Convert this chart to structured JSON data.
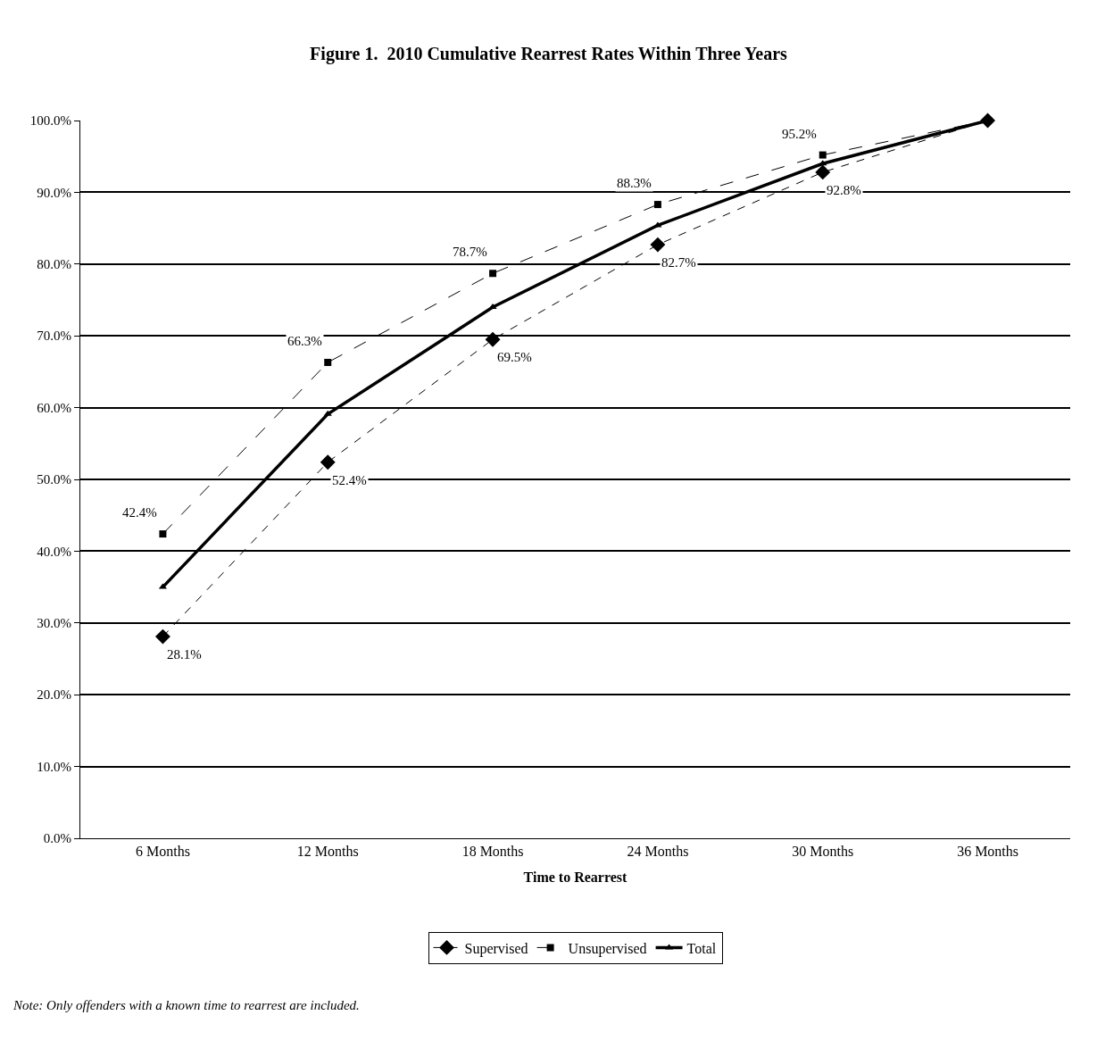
{
  "chart_data": {
    "type": "line",
    "title": "Figure 1.  2010 Cumulative Rearrest Rates Within Three Years",
    "xlabel": "Time to Rearrest",
    "categories": [
      "6 Months",
      "12 Months",
      "18 Months",
      "24 Months",
      "30 Months",
      "36 Months"
    ],
    "series": [
      {
        "name": "Supervised",
        "color": "#000000",
        "marker": "diamond",
        "line_style": "dotted",
        "values": [
          28.1,
          52.4,
          69.5,
          82.7,
          92.8,
          100.0
        ],
        "value_labels": [
          "28.1%",
          "52.4%",
          "69.5%",
          "82.7%",
          "92.8%",
          null
        ]
      },
      {
        "name": "Unsupervised",
        "color": "#000000",
        "marker": "square",
        "line_style": "dashed",
        "values": [
          42.4,
          66.3,
          78.7,
          88.3,
          95.2,
          100.0
        ],
        "value_labels": [
          "42.4%",
          "66.3%",
          "78.7%",
          "88.3%",
          "95.2%",
          null
        ]
      },
      {
        "name": "Total",
        "color": "#000000",
        "marker": "triangle",
        "line_style": "solid",
        "values": [
          35.0,
          59.1,
          74.0,
          85.4,
          94.0,
          100.0
        ]
      }
    ],
    "ylim": [
      0,
      100
    ],
    "yticks": [
      {
        "value": 0,
        "label": "0.0%"
      },
      {
        "value": 10,
        "label": "10.0%"
      },
      {
        "value": 20,
        "label": "20.0%"
      },
      {
        "value": 30,
        "label": "30.0%"
      },
      {
        "value": 40,
        "label": "40.0%"
      },
      {
        "value": 50,
        "label": "50.0%"
      },
      {
        "value": 60,
        "label": "60.0%"
      },
      {
        "value": 70,
        "label": "70.0%"
      },
      {
        "value": 80,
        "label": "80.0%"
      },
      {
        "value": 90,
        "label": "90.0%"
      },
      {
        "value": 100,
        "label": "100.0%"
      }
    ],
    "grid": "y",
    "legend": "bottom",
    "annotations": [
      "Note: Only offenders with a known time to rearrest are included."
    ]
  }
}
